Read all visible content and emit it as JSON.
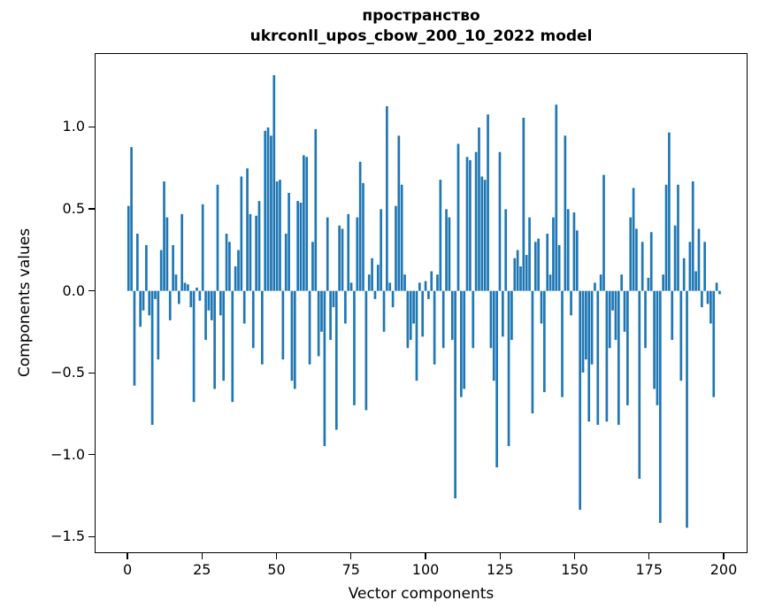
{
  "chart_data": {
    "type": "bar",
    "title_line1": "пространство",
    "title_line2": "ukrconll_upos_cbow_200_10_2022 model",
    "xlabel": "Vector components",
    "ylabel": "Components values",
    "bar_color": "#1f77b4",
    "bar_width": 0.8,
    "xlim": [
      -11,
      208
    ],
    "ylim": [
      -1.6,
      1.45
    ],
    "xticks": [
      0,
      25,
      50,
      75,
      100,
      125,
      150,
      175,
      200
    ],
    "yticks": [
      -1.5,
      -1.0,
      -0.5,
      0.0,
      0.5,
      1.0
    ],
    "ytick_labels": [
      "−1.5",
      "−1.0",
      "−0.5",
      "0.0",
      "0.5",
      "1.0"
    ],
    "legend": "none",
    "grid": false,
    "values": [
      0.52,
      0.88,
      -0.58,
      0.35,
      -0.22,
      -0.12,
      0.28,
      -0.15,
      -0.82,
      -0.05,
      -0.42,
      0.25,
      0.67,
      0.45,
      -0.18,
      0.28,
      0.1,
      -0.08,
      0.47,
      0.05,
      0.04,
      -0.1,
      -0.68,
      0.02,
      -0.06,
      0.53,
      -0.3,
      -0.12,
      -0.18,
      -0.6,
      0.65,
      -0.15,
      -0.55,
      0.35,
      0.3,
      -0.68,
      0.15,
      0.25,
      0.7,
      -0.2,
      0.75,
      0.47,
      -0.35,
      0.46,
      0.55,
      -0.45,
      0.98,
      1.0,
      0.95,
      1.32,
      0.67,
      0.68,
      -0.42,
      0.35,
      0.6,
      -0.55,
      -0.6,
      0.55,
      0.54,
      0.83,
      0.82,
      -0.45,
      0.3,
      0.99,
      -0.4,
      -0.25,
      -0.95,
      0.45,
      -0.3,
      -0.1,
      -0.85,
      0.4,
      0.38,
      -0.2,
      0.47,
      0.05,
      -0.7,
      0.45,
      0.79,
      0.66,
      -0.73,
      0.1,
      0.2,
      -0.05,
      0.16,
      0.5,
      -0.25,
      1.13,
      0.05,
      -0.1,
      0.52,
      0.95,
      0.65,
      0.1,
      -0.35,
      -0.3,
      -0.2,
      -0.55,
      0.05,
      -0.28,
      0.06,
      -0.05,
      0.12,
      -0.45,
      0.1,
      0.68,
      -0.35,
      0.5,
      0.45,
      -0.3,
      -1.27,
      0.9,
      -0.65,
      -0.6,
      0.82,
      0.8,
      -0.35,
      0.85,
      1.0,
      0.7,
      0.68,
      1.08,
      -0.35,
      -0.55,
      -1.08,
      0.85,
      -0.28,
      0.5,
      -0.95,
      -0.3,
      0.2,
      0.25,
      0.15,
      1.06,
      0.22,
      0.45,
      -0.75,
      0.3,
      0.32,
      -0.2,
      -0.62,
      0.35,
      0.1,
      0.45,
      1.14,
      0.28,
      -0.65,
      0.95,
      0.5,
      -0.15,
      0.48,
      0.37,
      -1.34,
      -0.5,
      -0.42,
      -0.8,
      -0.45,
      0.05,
      -0.82,
      0.1,
      0.71,
      -0.8,
      -0.35,
      -0.12,
      -0.3,
      -0.82,
      0.1,
      -0.25,
      -0.7,
      0.45,
      0.63,
      0.38,
      -1.15,
      0.3,
      -0.35,
      0.08,
      0.36,
      -0.6,
      -0.7,
      -1.42,
      0.1,
      0.65,
      0.97,
      -0.3,
      0.4,
      0.65,
      -0.55,
      0.2,
      -1.45,
      0.3,
      0.67,
      0.12,
      0.38,
      -0.1,
      0.3,
      -0.08,
      -0.2,
      -0.65,
      0.05,
      -0.02
    ]
  }
}
